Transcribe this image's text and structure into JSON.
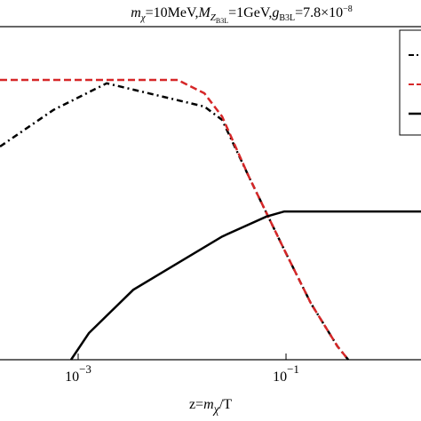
{
  "chart_data": {
    "type": "line",
    "title_parts": [
      "m",
      "χ",
      "=10MeV,",
      "M",
      "Z",
      "B3L",
      "=1GeV,",
      "g",
      "B3L",
      "=7.8×10",
      "−8"
    ],
    "xlabel_parts": [
      "z=",
      "m",
      "χ",
      "/T"
    ],
    "x_log": true,
    "xlim": [
      0.000177,
      1.99
    ],
    "ylim": [
      0,
      1
    ],
    "xticks": [
      {
        "value": 0.001,
        "label": "10",
        "exponent": "−3"
      },
      {
        "value": 0.1,
        "label": "10",
        "exponent": "−1"
      }
    ],
    "series": [
      {
        "color": "#000000",
        "dash": "dashdot",
        "x": [
          0.000177,
          0.000577,
          0.00188,
          0.0164,
          0.0243,
          0.0438,
          0.0962,
          0.173,
          0.313,
          0.397
        ],
        "values": [
          0.64,
          0.75,
          0.83,
          0.76,
          0.72,
          0.55,
          0.33,
          0.17,
          0.04,
          0
        ]
      },
      {
        "color": "#d62728",
        "dash": "dashed",
        "x": [
          0.000177,
          0.00188,
          0.00906,
          0.0164,
          0.0243,
          0.0438,
          0.0962,
          0.173,
          0.313,
          0.397
        ],
        "values": [
          0.84,
          0.84,
          0.84,
          0.8,
          0.73,
          0.55,
          0.33,
          0.17,
          0.04,
          0
        ]
      },
      {
        "color": "#000000",
        "dash": "solid",
        "x": [
          0.000855,
          0.00127,
          0.00339,
          0.00906,
          0.0243,
          0.0649,
          0.0962,
          1.99
        ],
        "values": [
          0,
          0.08,
          0.21,
          0.29,
          0.37,
          0.43,
          0.445,
          0.445
        ]
      }
    ]
  }
}
